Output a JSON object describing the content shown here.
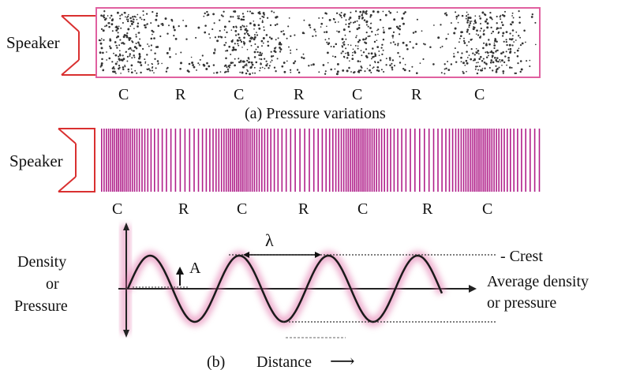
{
  "panel_a": {
    "speaker_label": "Speaker",
    "markers": [
      "C",
      "R",
      "C",
      "R",
      "C",
      "R",
      "C"
    ],
    "caption": "(a) Pressure variations"
  },
  "panel_b_top": {
    "speaker_label": "Speaker",
    "markers": [
      "C",
      "R",
      "C",
      "R",
      "C",
      "R",
      "C"
    ]
  },
  "graph": {
    "y_axis_label_lines": [
      "Density",
      "or",
      "Pressure"
    ],
    "amplitude_label": "A",
    "wavelength_label": "λ",
    "crest_label": "- Crest",
    "average_label_lines": [
      "Average density",
      "or pressure"
    ],
    "panel_label": "(b)",
    "x_axis_label": "Distance",
    "x_axis_arrow": "⟶"
  },
  "colors": {
    "speaker_stroke": "#d93030",
    "tube_border": "#e060a0",
    "bar_fill": "#b0208a",
    "wave_glow": "#e070a8",
    "wave_line": "#1a1a1a",
    "dots": "#333333"
  }
}
